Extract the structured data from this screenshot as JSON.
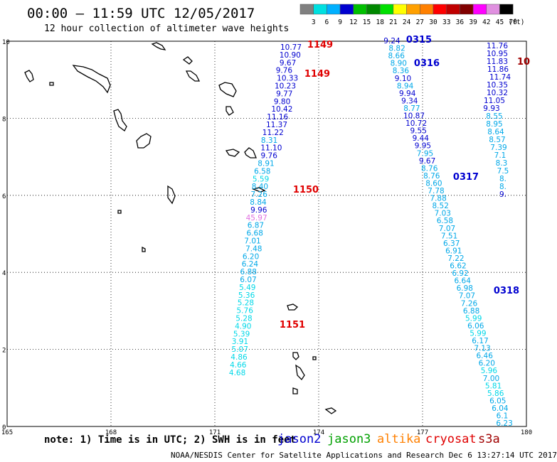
{
  "header": {
    "title": "00:00 – 11:59 UTC 12/05/2017",
    "subtitle": "12 hour collection of altimeter wave heights"
  },
  "legend": {
    "unit": "(ft)",
    "bins": [
      {
        "label": "3",
        "color": "#808080"
      },
      {
        "label": "6",
        "color": "#00e0e0"
      },
      {
        "label": "9",
        "color": "#00b0ff"
      },
      {
        "label": "12",
        "color": "#0000d0"
      },
      {
        "label": "15",
        "color": "#00c000"
      },
      {
        "label": "18",
        "color": "#008800"
      },
      {
        "label": "21",
        "color": "#00e000"
      },
      {
        "label": "24",
        "color": "#ffff00"
      },
      {
        "label": "27",
        "color": "#ffa000"
      },
      {
        "label": "30",
        "color": "#ff8000"
      },
      {
        "label": "33",
        "color": "#ff0000"
      },
      {
        "label": "36",
        "color": "#c00000"
      },
      {
        "label": "39",
        "color": "#800000"
      },
      {
        "label": "42",
        "color": "#ff00ff"
      },
      {
        "label": "45",
        "color": "#e090e0"
      },
      {
        "label": "70",
        "color": "#000000"
      }
    ]
  },
  "axes": {
    "lat_labels": [
      "10",
      "8",
      "6",
      "4",
      "2",
      "0"
    ],
    "lon_labels": [
      "165",
      "168",
      "171",
      "174",
      "177",
      "180"
    ],
    "lat_range": [
      0,
      10
    ],
    "lon_range": [
      165,
      180
    ]
  },
  "tracks": [
    {
      "name": "pass-a",
      "points": [
        {
          "v": "10.77",
          "c": "#0000d0"
        },
        {
          "v": "10.90",
          "c": "#0000d0"
        },
        {
          "v": "9.67",
          "c": "#0000d0"
        },
        {
          "v": "9.76",
          "c": "#0000d0"
        },
        {
          "v": "10.33",
          "c": "#0000d0"
        },
        {
          "v": "10.23",
          "c": "#0000d0"
        },
        {
          "v": "9.77",
          "c": "#0000d0"
        },
        {
          "v": "9.80",
          "c": "#0000d0"
        },
        {
          "v": "10.42",
          "c": "#0000d0"
        },
        {
          "v": "11.16",
          "c": "#0000d0"
        },
        {
          "v": "11.37",
          "c": "#0000d0"
        },
        {
          "v": "11.22",
          "c": "#0000d0"
        },
        {
          "v": "8.31",
          "c": "#00a8e8"
        },
        {
          "v": "11.10",
          "c": "#0000d0"
        },
        {
          "v": "9.76",
          "c": "#0000d0"
        },
        {
          "v": "8.91",
          "c": "#00a8e8"
        },
        {
          "v": "6.58",
          "c": "#00a8e8"
        },
        {
          "v": "5.59",
          "c": "#00d8e8"
        },
        {
          "v": "8.40",
          "c": "#00a8e8"
        },
        {
          "v": "7.26",
          "c": "#00a8e8"
        },
        {
          "v": "8.84",
          "c": "#00a8e8"
        },
        {
          "v": "9.96",
          "c": "#0000d0"
        },
        {
          "v": "45.97",
          "c": "#e070e0"
        },
        {
          "v": "6.87",
          "c": "#00a8e8"
        },
        {
          "v": "6.68",
          "c": "#00a8e8"
        },
        {
          "v": "7.01",
          "c": "#00a8e8"
        },
        {
          "v": "7.48",
          "c": "#00a8e8"
        },
        {
          "v": "6.20",
          "c": "#00a8e8"
        },
        {
          "v": "6.24",
          "c": "#00a8e8"
        },
        {
          "v": "6.88",
          "c": "#00a8e8"
        },
        {
          "v": "6.07",
          "c": "#00a8e8"
        },
        {
          "v": "5.49",
          "c": "#00d8e8"
        },
        {
          "v": "5.36",
          "c": "#00d8e8"
        },
        {
          "v": "5.28",
          "c": "#00d8e8"
        },
        {
          "v": "5.76",
          "c": "#00d8e8"
        },
        {
          "v": "5.28",
          "c": "#00d8e8"
        },
        {
          "v": "4.90",
          "c": "#00d8e8"
        },
        {
          "v": "5.39",
          "c": "#00d8e8"
        },
        {
          "v": "3.91",
          "c": "#00d8e8"
        },
        {
          "v": "5.07",
          "c": "#00d8e8"
        },
        {
          "v": "4.86",
          "c": "#00d8e8"
        },
        {
          "v": "4.66",
          "c": "#00d8e8"
        },
        {
          "v": "4.68",
          "c": "#00d8e8"
        }
      ]
    },
    {
      "name": "pass-b",
      "points": [
        {
          "v": "9.24",
          "c": "#0000d0"
        },
        {
          "v": "8.82",
          "c": "#00a8e8"
        },
        {
          "v": "8.66",
          "c": "#00a8e8"
        },
        {
          "v": "8.90",
          "c": "#00a8e8"
        },
        {
          "v": "8.36",
          "c": "#00a8e8"
        },
        {
          "v": "9.10",
          "c": "#0000d0"
        },
        {
          "v": "8.94",
          "c": "#00a8e8"
        },
        {
          "v": "9.94",
          "c": "#0000d0"
        },
        {
          "v": "9.34",
          "c": "#0000d0"
        },
        {
          "v": "8.77",
          "c": "#00a8e8"
        },
        {
          "v": "10.87",
          "c": "#0000d0"
        },
        {
          "v": "10.72",
          "c": "#0000d0"
        },
        {
          "v": "9.55",
          "c": "#0000d0"
        },
        {
          "v": "9.44",
          "c": "#0000d0"
        },
        {
          "v": "9.95",
          "c": "#0000d0"
        },
        {
          "v": "7.95",
          "c": "#00a8e8"
        },
        {
          "v": "9.67",
          "c": "#0000d0"
        },
        {
          "v": "8.76",
          "c": "#00a8e8"
        },
        {
          "v": "8.76",
          "c": "#00a8e8"
        },
        {
          "v": "8.60",
          "c": "#00a8e8"
        },
        {
          "v": "7.78",
          "c": "#00a8e8"
        },
        {
          "v": "7.88",
          "c": "#00a8e8"
        },
        {
          "v": "8.52",
          "c": "#00a8e8"
        },
        {
          "v": "7.03",
          "c": "#00a8e8"
        },
        {
          "v": "6.58",
          "c": "#00a8e8"
        },
        {
          "v": "7.07",
          "c": "#00a8e8"
        },
        {
          "v": "7.51",
          "c": "#00a8e8"
        },
        {
          "v": "6.37",
          "c": "#00a8e8"
        },
        {
          "v": "6.91",
          "c": "#00a8e8"
        },
        {
          "v": "7.22",
          "c": "#00a8e8"
        },
        {
          "v": "6.62",
          "c": "#00a8e8"
        },
        {
          "v": "6.92",
          "c": "#00a8e8"
        },
        {
          "v": "6.64",
          "c": "#00a8e8"
        },
        {
          "v": "6.98",
          "c": "#00a8e8"
        },
        {
          "v": "7.07",
          "c": "#00a8e8"
        },
        {
          "v": "7.26",
          "c": "#00a8e8"
        },
        {
          "v": "6.88",
          "c": "#00a8e8"
        },
        {
          "v": "5.99",
          "c": "#00d8e8"
        },
        {
          "v": "6.06",
          "c": "#00a8e8"
        },
        {
          "v": "5.99",
          "c": "#00d8e8"
        },
        {
          "v": "6.17",
          "c": "#00a8e8"
        },
        {
          "v": "7.13",
          "c": "#00a8e8"
        },
        {
          "v": "6.46",
          "c": "#00a8e8"
        },
        {
          "v": "6.20",
          "c": "#00a8e8"
        },
        {
          "v": "5.96",
          "c": "#00d8e8"
        },
        {
          "v": "7.00",
          "c": "#00a8e8"
        },
        {
          "v": "5.81",
          "c": "#00d8e8"
        },
        {
          "v": "5.86",
          "c": "#00d8e8"
        },
        {
          "v": "6.05",
          "c": "#00a8e8"
        },
        {
          "v": "6.04",
          "c": "#00a8e8"
        },
        {
          "v": "6.1",
          "c": "#00a8e8"
        },
        {
          "v": "6.23",
          "c": "#00a8e8"
        }
      ]
    },
    {
      "name": "pass-c",
      "points": [
        {
          "v": "11.76",
          "c": "#0000d0"
        },
        {
          "v": "10.95",
          "c": "#0000d0"
        },
        {
          "v": "11.83",
          "c": "#0000d0"
        },
        {
          "v": "11.86",
          "c": "#0000d0"
        },
        {
          "v": "11.74",
          "c": "#0000d0"
        },
        {
          "v": "10.35",
          "c": "#0000d0"
        },
        {
          "v": "10.32",
          "c": "#0000d0"
        },
        {
          "v": "11.05",
          "c": "#0000d0"
        },
        {
          "v": "9.93",
          "c": "#0000d0"
        },
        {
          "v": "8.55",
          "c": "#00a8e8"
        },
        {
          "v": "8.95",
          "c": "#00a8e8"
        },
        {
          "v": "8.64",
          "c": "#00a8e8"
        },
        {
          "v": "8.57",
          "c": "#00a8e8"
        },
        {
          "v": "7.39",
          "c": "#00a8e8"
        },
        {
          "v": "7.1",
          "c": "#00a8e8"
        },
        {
          "v": "8.3",
          "c": "#00a8e8"
        },
        {
          "v": "7.5",
          "c": "#00a8e8"
        },
        {
          "v": "8.",
          "c": "#00a8e8"
        },
        {
          "v": "8.",
          "c": "#00a8e8"
        },
        {
          "v": "9.",
          "c": "#0000d0"
        }
      ]
    }
  ],
  "time_tags": [
    {
      "text": "1149",
      "color": "#e00000"
    },
    {
      "text": "1149",
      "color": "#e00000"
    },
    {
      "text": "1150",
      "color": "#e00000"
    },
    {
      "text": "1151",
      "color": "#e00000"
    },
    {
      "text": "0315",
      "color": "#0000d0"
    },
    {
      "text": "0316",
      "color": "#0000d0"
    },
    {
      "text": "0317",
      "color": "#0000d0"
    },
    {
      "text": "0318",
      "color": "#0000d0"
    },
    {
      "text": "10",
      "color": "#a00000"
    }
  ],
  "footer": {
    "note": "note: 1) Time is in UTC; 2) SWH is in feet",
    "satellites": [
      {
        "name": "jason2",
        "color": "#0000d0"
      },
      {
        "name": "jason3",
        "color": "#00a000"
      },
      {
        "name": "altika",
        "color": "#ff8000"
      },
      {
        "name": "cryosat",
        "color": "#e00000"
      },
      {
        "name": "s3a",
        "color": "#a00000"
      }
    ],
    "credit": "NOAA/NESDIS Center for Satellite Applications and Research   Dec  6 13:27:14 UTC 2017"
  }
}
